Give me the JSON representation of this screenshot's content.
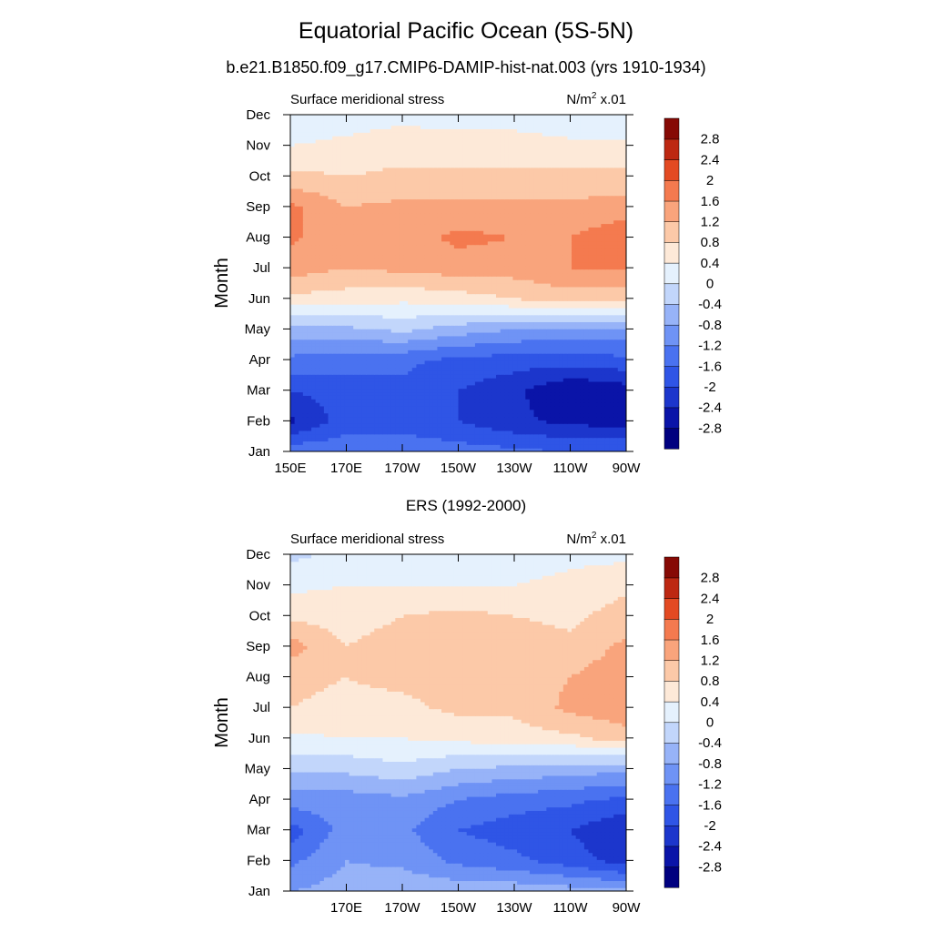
{
  "main_title": "Equatorial Pacific Ocean (5S-5N)",
  "subtitle": "b.e21.B1850.f09_g17.CMIP6-DAMIP-hist-nat.003 (yrs 1910-1934)",
  "colorbar": {
    "levels": [
      "-2.8",
      "-2.4",
      "-2",
      "-1.6",
      "-1.2",
      "-0.8",
      "-0.4",
      "0",
      "0.4",
      "0.8",
      "1.2",
      "1.6",
      "2",
      "2.4",
      "2.8"
    ],
    "colors": [
      "#00007f",
      "#0a14a8",
      "#1c36cc",
      "#2f55e6",
      "#4a72f0",
      "#6f93f5",
      "#97b3f8",
      "#c2d6fb",
      "#e5f1fd",
      "#fde9d8",
      "#fcc9a8",
      "#f9a47c",
      "#f47a4f",
      "#e34a22",
      "#bd2812",
      "#860a05"
    ]
  },
  "chart_data": [
    {
      "type": "heatmap",
      "title": "",
      "left_label": "Surface meridional stress",
      "units_label": "N/m",
      "units_sup": "2",
      "units_scale": "x.01",
      "ylabel": "Month",
      "xlabel": "",
      "x_ticks": [
        "150E",
        "170E",
        "170W",
        "150W",
        "130W",
        "110W",
        "90W"
      ],
      "y_ticks": [
        "Jan",
        "Feb",
        "Mar",
        "Apr",
        "May",
        "Jun",
        "Jul",
        "Aug",
        "Sep",
        "Oct",
        "Nov",
        "Dec"
      ],
      "x_range": [
        150,
        270
      ],
      "z_range": [
        -3.2,
        3.2
      ],
      "z_units_scale": 0.01,
      "lon": [
        150,
        170,
        190,
        210,
        230,
        250,
        270
      ],
      "months": [
        "Jan",
        "Feb",
        "Mar",
        "Apr",
        "May",
        "Jun",
        "Jul",
        "Aug",
        "Sep",
        "Oct",
        "Nov",
        "Dec"
      ],
      "values": [
        [
          -1.3,
          -1.3,
          -1.3,
          -1.4,
          -1.5,
          -1.6,
          -1.6
        ],
        [
          -2.5,
          -1.8,
          -1.8,
          -2.0,
          -2.3,
          -2.5,
          -2.6
        ],
        [
          -2.0,
          -1.8,
          -1.7,
          -2.0,
          -2.3,
          -2.8,
          -2.6
        ],
        [
          -1.3,
          -1.4,
          -1.5,
          -1.7,
          -1.8,
          -1.8,
          -1.7
        ],
        [
          -0.6,
          -0.5,
          -0.3,
          -0.6,
          -0.8,
          -0.9,
          -0.9
        ],
        [
          0.7,
          0.6,
          0.5,
          0.6,
          0.8,
          1.0,
          1.0
        ],
        [
          1.4,
          1.2,
          1.3,
          1.4,
          1.4,
          1.6,
          1.6
        ],
        [
          1.7,
          1.2,
          1.4,
          1.7,
          1.6,
          1.6,
          1.9
        ],
        [
          1.7,
          1.2,
          1.3,
          1.3,
          1.3,
          1.3,
          1.4
        ],
        [
          0.9,
          0.8,
          0.9,
          0.9,
          0.9,
          0.9,
          0.9
        ],
        [
          0.4,
          0.5,
          0.6,
          0.6,
          0.6,
          0.5,
          0.5
        ],
        [
          0.1,
          0.2,
          0.3,
          0.2,
          0.2,
          0.1,
          0.0
        ]
      ]
    },
    {
      "type": "heatmap",
      "title": "ERS (1992-2000)",
      "left_label": "Surface meridional stress",
      "units_label": "N/m",
      "units_sup": "2",
      "units_scale": "x.01",
      "ylabel": "Month",
      "xlabel": "",
      "x_ticks": [
        "",
        "170E",
        "170W",
        "150W",
        "130W",
        "110W",
        "90W"
      ],
      "y_ticks": [
        "Jan",
        "Feb",
        "Mar",
        "Apr",
        "May",
        "Jun",
        "Jul",
        "Aug",
        "Sep",
        "Oct",
        "Nov",
        "Dec"
      ],
      "x_range": [
        150,
        270
      ],
      "z_range": [
        -3.2,
        3.2
      ],
      "z_units_scale": 0.01,
      "lon": [
        150,
        170,
        190,
        210,
        230,
        250,
        270
      ],
      "months": [
        "Jan",
        "Feb",
        "Mar",
        "Apr",
        "May",
        "Jun",
        "Jul",
        "Aug",
        "Sep",
        "Oct",
        "Nov",
        "Dec"
      ],
      "values": [
        [
          -0.8,
          -0.6,
          -0.5,
          -0.5,
          -0.5,
          -0.6,
          -0.7
        ],
        [
          -1.3,
          -0.8,
          -0.9,
          -1.3,
          -1.5,
          -1.8,
          -2.2
        ],
        [
          -1.8,
          -1.0,
          -1.1,
          -1.6,
          -1.8,
          -2.0,
          -2.4
        ],
        [
          -1.0,
          -1.0,
          -0.9,
          -1.2,
          -1.4,
          -1.5,
          -1.7
        ],
        [
          -0.3,
          -0.3,
          -0.1,
          -0.4,
          -0.5,
          -0.6,
          -0.7
        ],
        [
          0.3,
          0.4,
          0.4,
          0.5,
          0.6,
          0.7,
          1.0
        ],
        [
          0.8,
          0.7,
          0.7,
          0.9,
          0.9,
          1.3,
          1.5
        ],
        [
          0.9,
          0.8,
          0.9,
          1.0,
          1.0,
          1.2,
          1.5
        ],
        [
          1.4,
          0.8,
          1.0,
          1.0,
          1.0,
          0.9,
          1.3
        ],
        [
          0.7,
          0.6,
          0.8,
          0.9,
          0.8,
          0.7,
          1.0
        ],
        [
          0.3,
          0.4,
          0.4,
          0.4,
          0.4,
          0.5,
          0.7
        ],
        [
          -0.1,
          0.1,
          0.0,
          0.2,
          0.2,
          0.3,
          0.3
        ]
      ]
    }
  ]
}
